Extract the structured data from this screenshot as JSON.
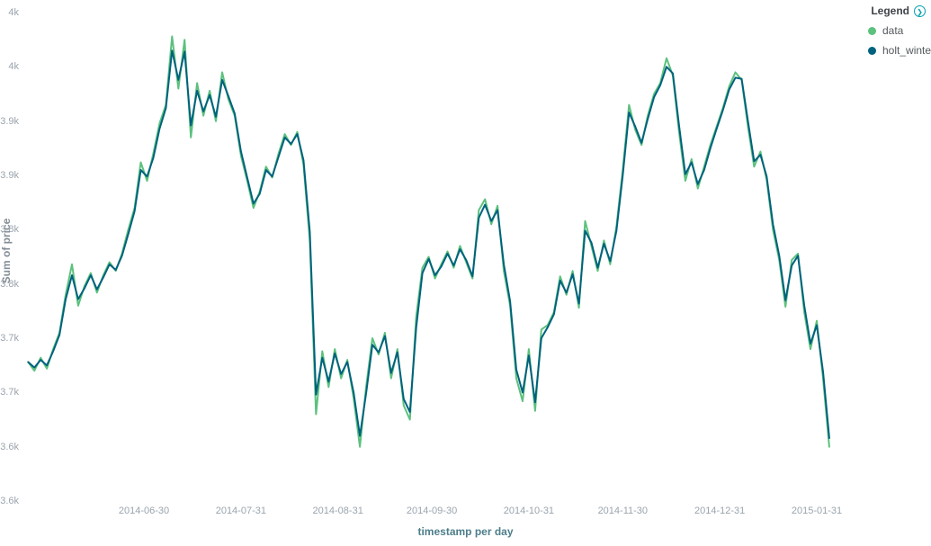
{
  "ui": {
    "legend": {
      "title": "Legend",
      "toggle_icon": "chevron-right-circle"
    },
    "colors": {
      "accent_teal": "#00a0b0",
      "axis_tick_label": "#9aa4ad",
      "x_axis_title": "#4d7e8a",
      "y_axis_title": "#848e96"
    }
  },
  "chart_data": {
    "type": "line",
    "title": "",
    "xlabel": "timestamp per day",
    "ylabel": "Sum of price",
    "legend_position": "top-right",
    "grid": false,
    "x_axis": {
      "start_date": "2014-05-24",
      "step_days": 2,
      "tick_labels": [
        "2014-06-30",
        "2014-07-31",
        "2014-08-31",
        "2014-09-30",
        "2014-10-31",
        "2014-11-30",
        "2014-12-31",
        "2015-01-31"
      ]
    },
    "y_axis": {
      "lim": [
        3.55,
        4.0
      ],
      "unit": "k",
      "tick_values": [
        4.0,
        3.95,
        3.9,
        3.85,
        3.8,
        3.75,
        3.7,
        3.65,
        3.6,
        3.55
      ],
      "tick_labels": [
        "4k",
        "4k",
        "3.9k",
        "3.9k",
        "3.8k",
        "3.8k",
        "3.7k",
        "3.7k",
        "3.6k",
        "3.6k"
      ]
    },
    "series": [
      {
        "name": "data",
        "color": "#5cc17e",
        "values": [
          3.678,
          3.67,
          3.682,
          3.672,
          3.69,
          3.705,
          3.74,
          3.768,
          3.73,
          3.748,
          3.76,
          3.742,
          3.758,
          3.77,
          3.762,
          3.778,
          3.8,
          3.82,
          3.862,
          3.845,
          3.87,
          3.898,
          3.915,
          3.978,
          3.93,
          3.975,
          3.885,
          3.935,
          3.905,
          3.928,
          3.9,
          3.945,
          3.92,
          3.905,
          3.868,
          3.845,
          3.82,
          3.835,
          3.858,
          3.848,
          3.87,
          3.888,
          3.878,
          3.89,
          3.86,
          3.79,
          3.63,
          3.688,
          3.655,
          3.69,
          3.663,
          3.68,
          3.645,
          3.6,
          3.655,
          3.7,
          3.685,
          3.705,
          3.663,
          3.69,
          3.638,
          3.625,
          3.72,
          3.765,
          3.775,
          3.755,
          3.768,
          3.78,
          3.765,
          3.785,
          3.77,
          3.755,
          3.818,
          3.828,
          3.805,
          3.822,
          3.762,
          3.73,
          3.663,
          3.642,
          3.69,
          3.633,
          3.708,
          3.712,
          3.724,
          3.757,
          3.74,
          3.762,
          3.728,
          3.808,
          3.785,
          3.762,
          3.79,
          3.768,
          3.803,
          3.855,
          3.915,
          3.892,
          3.878,
          3.905,
          3.925,
          3.935,
          3.958,
          3.942,
          3.89,
          3.845,
          3.865,
          3.838,
          3.858,
          3.878,
          3.895,
          3.912,
          3.932,
          3.945,
          3.938,
          3.895,
          3.858,
          3.872,
          3.846,
          3.8,
          3.772,
          3.729,
          3.772,
          3.778,
          3.724,
          3.69,
          3.716,
          3.663,
          3.6
        ]
      },
      {
        "name": "holt_winters",
        "color": "#00627d",
        "values": [
          3.678,
          3.673,
          3.68,
          3.675,
          3.688,
          3.703,
          3.736,
          3.758,
          3.736,
          3.746,
          3.758,
          3.745,
          3.756,
          3.768,
          3.763,
          3.776,
          3.796,
          3.817,
          3.855,
          3.849,
          3.866,
          3.893,
          3.912,
          3.965,
          3.938,
          3.964,
          3.896,
          3.928,
          3.909,
          3.924,
          3.904,
          3.938,
          3.923,
          3.907,
          3.872,
          3.848,
          3.824,
          3.833,
          3.855,
          3.849,
          3.867,
          3.885,
          3.879,
          3.888,
          3.864,
          3.798,
          3.648,
          3.682,
          3.66,
          3.686,
          3.667,
          3.678,
          3.65,
          3.61,
          3.649,
          3.694,
          3.687,
          3.702,
          3.668,
          3.687,
          3.644,
          3.632,
          3.71,
          3.76,
          3.773,
          3.758,
          3.766,
          3.778,
          3.767,
          3.782,
          3.772,
          3.757,
          3.811,
          3.823,
          3.808,
          3.818,
          3.768,
          3.734,
          3.671,
          3.65,
          3.684,
          3.641,
          3.7,
          3.71,
          3.722,
          3.753,
          3.742,
          3.759,
          3.732,
          3.799,
          3.788,
          3.765,
          3.787,
          3.771,
          3.799,
          3.85,
          3.908,
          3.895,
          3.88,
          3.902,
          3.922,
          3.933,
          3.95,
          3.944,
          3.896,
          3.851,
          3.862,
          3.842,
          3.855,
          3.875,
          3.893,
          3.91,
          3.929,
          3.94,
          3.939,
          3.9,
          3.863,
          3.869,
          3.849,
          3.805,
          3.776,
          3.735,
          3.767,
          3.776,
          3.73,
          3.695,
          3.712,
          3.669,
          3.608
        ]
      }
    ]
  }
}
